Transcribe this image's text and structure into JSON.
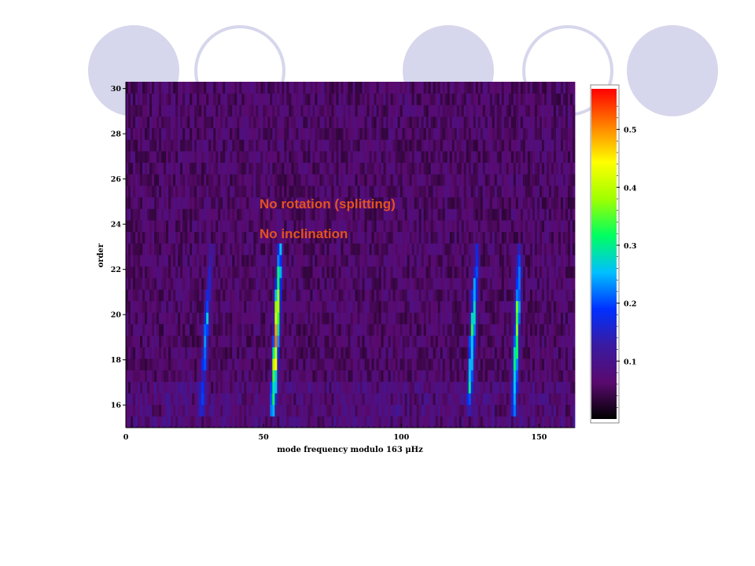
{
  "chart_data": {
    "type": "heatmap",
    "xlabel": "mode frequency modulo 163 μHz",
    "ylabel": "order",
    "xlim": [
      0,
      163
    ],
    "ylim": [
      15,
      30.3
    ],
    "x_ticks": [
      0,
      50,
      100,
      150
    ],
    "y_ticks": [
      16,
      18,
      20,
      22,
      24,
      26,
      28,
      30
    ],
    "background_level": 0.06,
    "ridges": [
      {
        "x_at_order_16": 27.5,
        "x_at_order_23": 31,
        "orders": [
          16,
          23
        ],
        "peak_value": 0.18
      },
      {
        "x_at_order_16": 53.5,
        "x_at_order_23": 56,
        "orders": [
          16,
          23
        ],
        "peak_value": 0.45
      },
      {
        "x_at_order_16": 124.5,
        "x_at_order_23": 127.5,
        "orders": [
          16,
          23
        ],
        "peak_value": 0.28
      },
      {
        "x_at_order_16": 141,
        "x_at_order_23": 143,
        "orders": [
          16,
          23
        ],
        "peak_value": 0.3
      }
    ],
    "colorbar": {
      "ticks": [
        0.1,
        0.2,
        0.3,
        0.4,
        0.5
      ],
      "range": [
        0,
        0.57
      ],
      "colors": [
        "#000000",
        "#5a0a6e",
        "#3a1aa0",
        "#0030ff",
        "#00c0ff",
        "#00ff60",
        "#a0ff00",
        "#ffff00",
        "#ff8000",
        "#ff0000"
      ]
    },
    "annotations": [
      "No rotation (splitting)",
      "No inclination"
    ]
  },
  "colors": {
    "annotation": "#e2531e",
    "decor_circle": "#d6d6ec",
    "plot_background": "#3a0f4a"
  }
}
